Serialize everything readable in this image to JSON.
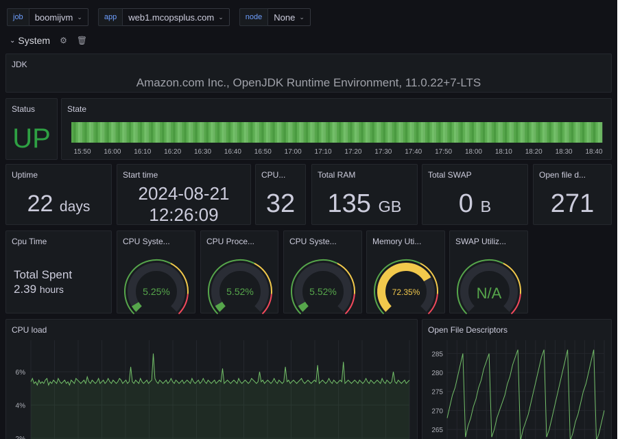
{
  "variables": [
    {
      "label": "job",
      "value": "boomijvm"
    },
    {
      "label": "app",
      "value": "web1.mcopsplus.com"
    },
    {
      "label": "node",
      "value": "None"
    }
  ],
  "row": {
    "title": "System"
  },
  "jdk": {
    "title": "JDK",
    "value": "Amazon.com Inc., OpenJDK Runtime Environment, 11.0.22+7-LTS"
  },
  "status": {
    "title": "Status",
    "value": "UP",
    "color": "#2ea043"
  },
  "state": {
    "title": "State",
    "color": "#56a64b",
    "ticks": [
      "15:50",
      "16:00",
      "16:10",
      "16:20",
      "16:30",
      "16:40",
      "16:50",
      "17:00",
      "17:10",
      "17:20",
      "17:30",
      "17:40",
      "17:50",
      "18:00",
      "18:10",
      "18:20",
      "18:30",
      "18:40"
    ]
  },
  "stats": {
    "uptime": {
      "title": "Uptime",
      "value": "22",
      "unit": "days"
    },
    "start_time": {
      "title": "Start time",
      "date": "2024-08-21",
      "time": "12:26:09"
    },
    "cpu": {
      "title": "CPU...",
      "value": "32"
    },
    "total_ram": {
      "title": "Total RAM",
      "value": "135",
      "unit": "GB"
    },
    "total_swap": {
      "title": "Total SWAP",
      "value": "0",
      "unit": "B"
    },
    "open_fd": {
      "title": "Open file d...",
      "value": "271"
    }
  },
  "cpu_time": {
    "title": "Cpu Time",
    "label": "Total Spent",
    "value": "2.39",
    "unit": "hours"
  },
  "gauges": [
    {
      "title": "CPU Syste...",
      "value_text": "5.25%",
      "percent": 5.25,
      "color": "#56a64b"
    },
    {
      "title": "CPU Proce...",
      "value_text": "5.52%",
      "percent": 5.52,
      "color": "#56a64b"
    },
    {
      "title": "CPU Syste...",
      "value_text": "5.52%",
      "percent": 5.52,
      "color": "#56a64b"
    },
    {
      "title": "Memory Uti...",
      "value_text": "72.35%",
      "percent": 72.35,
      "color": "#f2c94c"
    },
    {
      "title": "SWAP Utiliz...",
      "value_text": "N/A",
      "percent": 0,
      "color": "#56a64b"
    }
  ],
  "cpu_load": {
    "title": "CPU load"
  },
  "open_files": {
    "title": "Open File Descriptors"
  },
  "chart_data": [
    {
      "type": "line",
      "title": "CPU load",
      "y_ticks": [
        "6%",
        "4%",
        "2%"
      ],
      "series": [
        {
          "values": [
            5.4,
            5.6,
            5.3,
            5.4,
            5.2,
            5.5,
            5.3,
            5.4,
            5.3,
            5.5,
            5.6,
            5.2,
            5.4,
            5.3,
            5.5,
            5.4,
            5.3,
            5.6,
            5.4,
            5.3,
            5.4,
            5.5,
            5.3,
            5.4,
            5.2,
            5.5,
            5.4,
            5.3,
            5.6,
            5.5,
            5.4,
            5.3,
            5.4,
            5.5,
            5.3,
            5.7,
            5.4,
            5.3,
            5.5,
            5.4,
            5.3,
            5.4,
            5.6,
            5.3,
            5.4,
            5.5,
            5.3,
            5.4,
            5.6,
            5.4,
            5.3,
            5.5,
            5.4,
            5.3,
            5.4,
            5.6,
            5.5,
            5.3,
            5.4,
            5.5,
            5.3,
            5.4,
            6.3,
            5.4,
            5.3,
            5.5,
            5.4,
            5.3,
            5.6,
            5.4,
            5.3,
            5.4,
            5.5,
            5.3,
            5.4,
            5.5,
            7.1,
            5.6,
            5.4,
            5.3,
            5.5,
            5.4,
            5.3,
            5.4,
            5.5,
            5.3,
            5.4,
            5.6,
            5.4,
            5.3,
            5.5,
            5.4,
            5.3,
            5.4,
            5.5,
            5.3,
            5.4,
            5.5,
            5.4,
            5.3,
            5.6,
            5.4,
            5.3,
            5.4,
            5.5,
            5.3,
            5.4,
            5.6,
            5.4,
            5.3,
            5.5,
            5.4,
            5.3,
            5.4,
            5.5,
            5.3,
            5.4,
            5.5,
            5.4,
            6.2,
            5.3,
            5.4,
            5.5,
            5.4,
            5.3,
            5.4,
            5.5,
            5.4,
            5.3,
            5.6,
            5.4,
            5.3,
            5.4,
            5.5,
            5.4,
            5.3,
            5.4,
            5.6,
            5.5,
            5.4,
            5.3,
            5.4,
            6.0,
            5.4,
            5.5,
            5.3,
            5.4,
            5.5,
            5.4,
            5.3,
            5.4,
            5.6,
            5.4,
            5.3,
            5.5,
            5.4,
            5.3,
            5.4,
            6.3,
            5.4,
            5.5,
            5.3,
            5.4,
            5.5,
            5.4,
            5.3,
            5.4,
            5.5,
            5.6,
            5.4,
            5.3,
            5.4,
            5.5,
            5.4,
            5.3,
            5.4,
            5.5,
            5.4,
            6.4,
            5.3,
            5.4,
            5.5,
            5.4,
            5.3,
            5.4,
            5.6,
            5.4,
            5.3,
            5.5,
            5.4,
            5.3,
            5.4,
            5.5,
            5.4,
            6.6,
            5.3,
            5.4,
            5.5,
            5.4,
            5.3,
            5.4,
            5.5,
            5.4,
            5.3,
            5.5,
            5.4,
            5.3,
            5.4,
            5.6,
            5.4,
            5.3,
            5.5,
            5.4,
            5.3,
            5.4,
            5.5,
            5.4,
            5.3,
            5.6,
            5.4,
            5.3,
            5.5,
            5.4,
            5.3,
            5.4,
            6.0,
            5.4,
            5.3,
            5.5,
            5.4,
            5.3,
            5.4,
            5.5,
            5.3,
            5.4,
            5.5
          ]
        }
      ]
    },
    {
      "type": "line",
      "title": "Open File Descriptors",
      "y_ticks": [
        "285",
        "280",
        "275",
        "270",
        "265"
      ],
      "series": [
        {
          "values": [
            268,
            271,
            274,
            276,
            279,
            282,
            285,
            263,
            266,
            268,
            271,
            273,
            276,
            278,
            281,
            283,
            285,
            263,
            265,
            268,
            270,
            272,
            274,
            277,
            279,
            282,
            284,
            286,
            262,
            265,
            267,
            269,
            272,
            275,
            278,
            281,
            284,
            286,
            263,
            265,
            268,
            271,
            274,
            277,
            280,
            283,
            286,
            262,
            264,
            267,
            269,
            272,
            275,
            277,
            280,
            283,
            286,
            262,
            264,
            267,
            270
          ]
        }
      ]
    }
  ]
}
